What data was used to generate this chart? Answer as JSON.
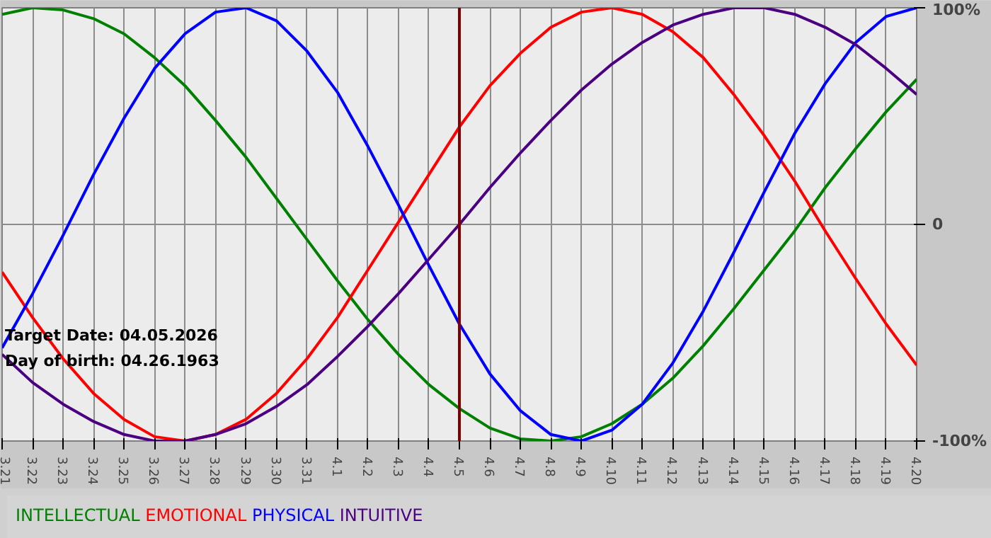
{
  "chart_data": {
    "type": "line",
    "categories": [
      "3.21",
      "3.22",
      "3.23",
      "3.24",
      "3.25",
      "3.26",
      "3.27",
      "3.28",
      "3.29",
      "3.30",
      "3.31",
      "4.1",
      "4.2",
      "4.3",
      "4.4",
      "4.5",
      "4.6",
      "4.7",
      "4.8",
      "4.9",
      "4.10",
      "4.11",
      "4.12",
      "4.13",
      "4.14",
      "4.15",
      "4.16",
      "4.17",
      "4.18",
      "4.19",
      "4.20"
    ],
    "series": [
      {
        "name": "INTELLECTUAL",
        "color": "#008000",
        "values": [
          97,
          100,
          99,
          95,
          88,
          77,
          64,
          48,
          31,
          12,
          -7,
          -26,
          -44,
          -60,
          -74,
          -85,
          -94,
          -99,
          -100,
          -98,
          -92,
          -83,
          -71,
          -56,
          -39,
          -21,
          -3,
          17,
          35,
          52,
          67
        ]
      },
      {
        "name": "EMOTIONAL",
        "color": "#ff0000",
        "values": [
          -22,
          -43,
          -62,
          -78,
          -90,
          -98,
          -100,
          -97,
          -90,
          -78,
          -62,
          -43,
          -21,
          1,
          23,
          45,
          64,
          79,
          91,
          98,
          100,
          97,
          89,
          77,
          60,
          41,
          20,
          -3,
          -25,
          -46,
          -65
        ]
      },
      {
        "name": "PHYSICAL",
        "color": "#0000ff",
        "values": [
          -57,
          -32,
          -5,
          23,
          49,
          72,
          88,
          98,
          100,
          94,
          80,
          61,
          36,
          9,
          -19,
          -46,
          -69,
          -86,
          -97,
          -100,
          -95,
          -83,
          -64,
          -40,
          -13,
          15,
          42,
          65,
          84,
          96,
          100
        ]
      },
      {
        "name": "INTUITIVE",
        "color": "#4b0082",
        "values": [
          -60,
          -73,
          -83,
          -91,
          -97,
          -100,
          -100,
          -97,
          -92,
          -84,
          -74,
          -61,
          -47,
          -32,
          -16,
          0,
          17,
          33,
          48,
          62,
          74,
          84,
          92,
          97,
          100,
          100,
          97,
          91,
          83,
          72,
          60
        ]
      }
    ],
    "ylim": [
      -100,
      100
    ],
    "yticks": [
      {
        "value": -100,
        "label": "-100%"
      },
      0,
      {
        "value": 100,
        "label": "100%"
      }
    ],
    "grid": true,
    "legend": "bottom",
    "ref_lines": [
      {
        "axis": "x",
        "value": "4.5",
        "color": "#800000"
      }
    ],
    "annotations": [
      "Target Date: 04.05.2026",
      "Day of birth: 04.26.1963"
    ]
  }
}
